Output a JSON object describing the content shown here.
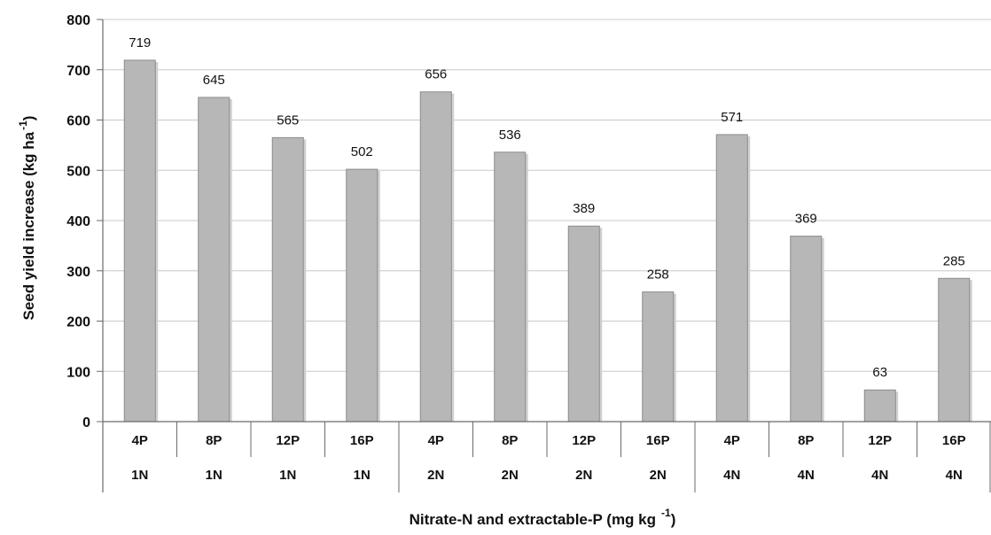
{
  "chart_data": {
    "type": "bar",
    "categories": [
      {
        "p": "4P",
        "n": "1N"
      },
      {
        "p": "8P",
        "n": "1N"
      },
      {
        "p": "12P",
        "n": "1N"
      },
      {
        "p": "16P",
        "n": "1N"
      },
      {
        "p": "4P",
        "n": "2N"
      },
      {
        "p": "8P",
        "n": "2N"
      },
      {
        "p": "12P",
        "n": "2N"
      },
      {
        "p": "16P",
        "n": "2N"
      },
      {
        "p": "4P",
        "n": "4N"
      },
      {
        "p": "8P",
        "n": "4N"
      },
      {
        "p": "12P",
        "n": "4N"
      },
      {
        "p": "16P",
        "n": "4N"
      }
    ],
    "values": [
      719,
      645,
      565,
      502,
      656,
      536,
      389,
      258,
      571,
      369,
      63,
      285
    ],
    "data_labels": [
      "719",
      "645",
      "565",
      "502",
      "656",
      "536",
      "389",
      "258",
      "571",
      "369",
      "63",
      "285"
    ],
    "ylim": [
      0,
      800
    ],
    "yticks": [
      "0",
      "100",
      "200",
      "300",
      "400",
      "500",
      "600",
      "700",
      "800"
    ],
    "ylabel": "Seed yield increase (kg ha",
    "ylabel_sup": "-1",
    "ylabel_close": ")",
    "xlabel": "Nitrate-N and extractable-P (mg kg",
    "xlabel_sup": "-1",
    "xlabel_close": ")",
    "grid": true,
    "bar_color": "#b7b7b7"
  }
}
